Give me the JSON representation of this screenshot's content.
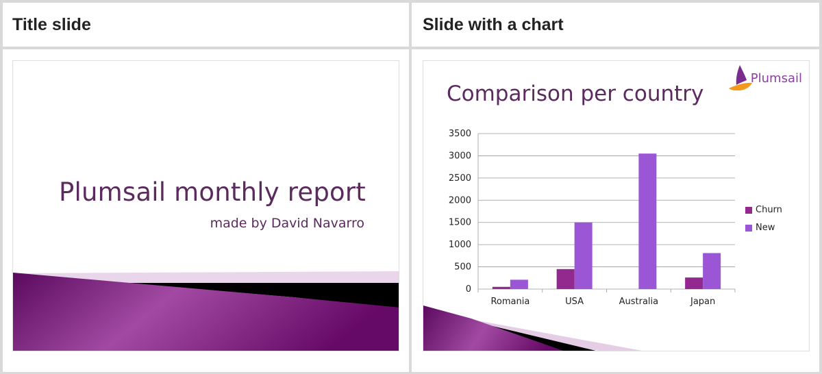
{
  "headers": {
    "left": "Title slide",
    "right": "Slide with a chart"
  },
  "title_slide": {
    "title": "Plumsail monthly report",
    "subtitle": "made by David Navarro"
  },
  "chart_slide": {
    "logo_text": "Plumsail",
    "colors": {
      "churn": "#93298f",
      "new": "#9b56d6",
      "title": "#5b2a5e"
    }
  },
  "chart_data": {
    "type": "bar",
    "title": "Comparison per country",
    "categories": [
      "Romania",
      "USA",
      "Australia",
      "Japan"
    ],
    "series": [
      {
        "name": "Churn",
        "values": [
          50,
          450,
          0,
          260
        ]
      },
      {
        "name": "New",
        "values": [
          210,
          1500,
          3050,
          810
        ]
      }
    ],
    "ylim": [
      0,
      3500
    ],
    "yticks": [
      "0",
      "500",
      "1000",
      "1500",
      "2000",
      "2500",
      "3000",
      "3500"
    ],
    "grid": true,
    "legend": "right"
  }
}
